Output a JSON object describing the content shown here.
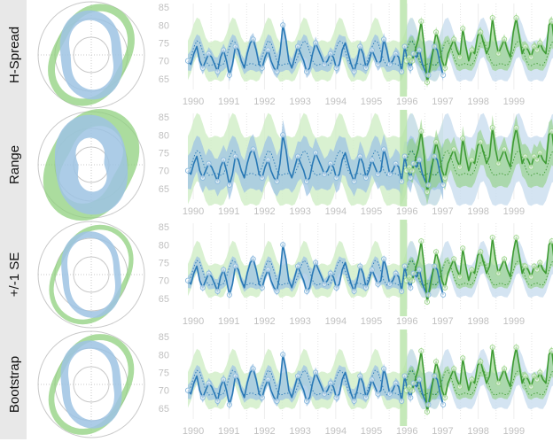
{
  "colors": {
    "blue": "#2878b5",
    "blue_band": "#9ec3e3",
    "blue_light": "#c9ddef",
    "green": "#3e9b34",
    "green_band": "#8fd07e",
    "green_light": "#cfeec5",
    "divider": "#b7e3a8"
  },
  "chart_data": [
    {
      "type": "line",
      "panel": "H-Spread",
      "title": "",
      "xlabel": "",
      "ylabel": "",
      "x_ticks": [
        "1990",
        "1991",
        "1992",
        "1993",
        "1994",
        "1995",
        "1996",
        "1997",
        "1998",
        "1999"
      ],
      "y_ticks": [
        65,
        70,
        75,
        80,
        85
      ],
      "ylim": [
        62,
        86
      ],
      "xlim": [
        1989.7,
        1999.8
      ],
      "forecast_start": 1995.9,
      "grid": "vertical",
      "band_width": 3
    },
    {
      "type": "line",
      "panel": "Range",
      "title": "",
      "xlabel": "",
      "ylabel": "",
      "x_ticks": [
        "1990",
        "1991",
        "1992",
        "1993",
        "1994",
        "1995",
        "1996",
        "1997",
        "1998",
        "1999"
      ],
      "y_ticks": [
        65,
        70,
        75,
        80,
        85
      ],
      "ylim": [
        62,
        86
      ],
      "xlim": [
        1989.7,
        1999.8
      ],
      "forecast_start": 1995.9,
      "grid": "vertical",
      "band_width": 7
    },
    {
      "type": "line",
      "panel": "+/-1 SE",
      "title": "",
      "xlabel": "",
      "ylabel": "",
      "x_ticks": [
        "1990",
        "1991",
        "1992",
        "1993",
        "1994",
        "1995",
        "1996",
        "1997",
        "1998",
        "1999"
      ],
      "y_ticks": [
        65,
        70,
        75,
        80,
        85
      ],
      "ylim": [
        62,
        86
      ],
      "xlim": [
        1989.7,
        1999.8
      ],
      "forecast_start": 1995.9,
      "grid": "vertical",
      "band_width": 2
    },
    {
      "type": "line",
      "panel": "Bootstrap",
      "title": "",
      "xlabel": "",
      "ylabel": "",
      "x_ticks": [
        "1990",
        "1991",
        "1992",
        "1993",
        "1994",
        "1995",
        "1996",
        "1997",
        "1998",
        "1999"
      ],
      "y_ticks": [
        65,
        70,
        75,
        80,
        85
      ],
      "ylim": [
        62,
        86
      ],
      "xlim": [
        1989.7,
        1999.8
      ],
      "forecast_start": 1995.9,
      "grid": "vertical",
      "band_width": 2.5
    }
  ],
  "series": {
    "start_year": 1989.85,
    "months_per_point": 1,
    "observed": [
      70,
      69,
      72,
      74,
      70,
      68,
      70,
      72,
      71,
      69,
      67,
      71,
      73,
      70,
      66,
      69,
      74,
      73,
      70,
      68,
      72,
      75,
      76,
      73,
      69,
      68,
      71,
      73,
      70,
      68,
      67,
      72,
      80,
      76,
      70,
      68,
      71,
      74,
      72,
      70,
      67,
      68,
      72,
      75,
      73,
      71,
      69,
      70,
      72,
      71,
      68,
      69,
      73,
      75,
      72,
      69,
      67,
      70,
      74,
      72,
      68,
      70,
      73,
      71,
      69,
      70,
      76,
      73,
      69,
      70,
      72,
      71,
      67,
      74,
      70,
      68,
      72,
      71,
      73,
      69,
      67,
      66,
      71,
      74,
      73,
      69,
      66
    ],
    "forecast": [
      70,
      71,
      70,
      73,
      76,
      81,
      74,
      64,
      68,
      73,
      78,
      75,
      70,
      68,
      72,
      74,
      76,
      73,
      71,
      79,
      74,
      70,
      73,
      72,
      77,
      78,
      75,
      72,
      74,
      82,
      76,
      72,
      74,
      76,
      73,
      71,
      78,
      82,
      77,
      72,
      74,
      73,
      71,
      74,
      73,
      75,
      73,
      72,
      80,
      81,
      74,
      73
    ]
  }
}
